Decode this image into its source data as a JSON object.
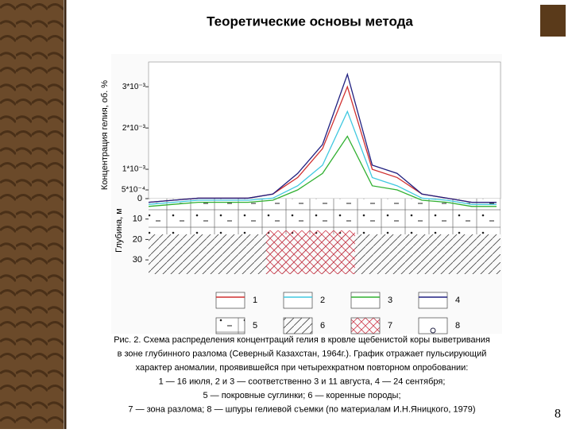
{
  "slide": {
    "title": "Теоретические основы метода",
    "page_number": "8"
  },
  "chart_data": {
    "type": "line",
    "ylabel": "Концентрация гелия, об. %",
    "ylim": [
      0,
      0.0036
    ],
    "yticks": [
      {
        "value": 0.0005,
        "label": "5*10⁻⁴"
      },
      {
        "value": 0.001,
        "label": "1*10⁻³"
      },
      {
        "value": 0.002,
        "label": "2*10⁻³"
      },
      {
        "value": 0.003,
        "label": "3*10⁻³"
      }
    ],
    "categories": [
      null,
      null,
      null,
      null,
      null,
      null,
      null,
      null,
      null,
      null,
      null,
      null,
      null,
      null,
      null
    ],
    "series": [
      {
        "name": "1",
        "color": "#d03030",
        "values": [
          0.0002,
          0.00025,
          0.0003,
          0.0003,
          0.0003,
          0.0004,
          0.0008,
          0.0015,
          0.003,
          0.001,
          0.0008,
          0.0004,
          0.0003,
          0.0002,
          0.0002
        ]
      },
      {
        "name": "2",
        "color": "#40c8e0",
        "values": [
          0.00015,
          0.0002,
          0.00025,
          0.00025,
          0.00025,
          0.0003,
          0.0006,
          0.0011,
          0.0024,
          0.0008,
          0.0006,
          0.0003,
          0.00025,
          0.00015,
          0.00015
        ]
      },
      {
        "name": "3",
        "color": "#30b030",
        "values": [
          0.0001,
          0.00015,
          0.0002,
          0.0002,
          0.0002,
          0.00025,
          0.0005,
          0.0009,
          0.0018,
          0.0006,
          0.0005,
          0.00025,
          0.0002,
          0.0001,
          0.0001
        ]
      },
      {
        "name": "4",
        "color": "#202080",
        "values": [
          0.0002,
          0.00025,
          0.0003,
          0.0003,
          0.0003,
          0.0004,
          0.0009,
          0.0016,
          0.0033,
          0.0011,
          0.0009,
          0.0004,
          0.0003,
          0.0002,
          0.0002
        ]
      }
    ]
  },
  "depth_axis": {
    "label": "Глубина, м",
    "ticks": [
      0,
      10,
      20,
      30
    ]
  },
  "legend": [
    "1",
    "2",
    "3",
    "4",
    "5",
    "6",
    "7",
    "8"
  ],
  "caption": [
    "Рис. 2. Схема распределения концентраций гелия в кровле щебенистой коры выветривания",
    "в зоне глубинного разлома (Северный Казахстан, 1964г.). График отражает пульсирующий",
    "характер аномалии, проявившейся при четырехкратном повторном опробовании:",
    "1 — 16 июля, 2 и 3 — соответственно 3 и 11 августа, 4 — 24 сентября;",
    "5 — покровные суглинки; 6 — коренные породы;",
    "7 — зона разлома; 8 — шпуры гелиевой съемки (по материалам И.Н.Яницкого, 1979)"
  ]
}
